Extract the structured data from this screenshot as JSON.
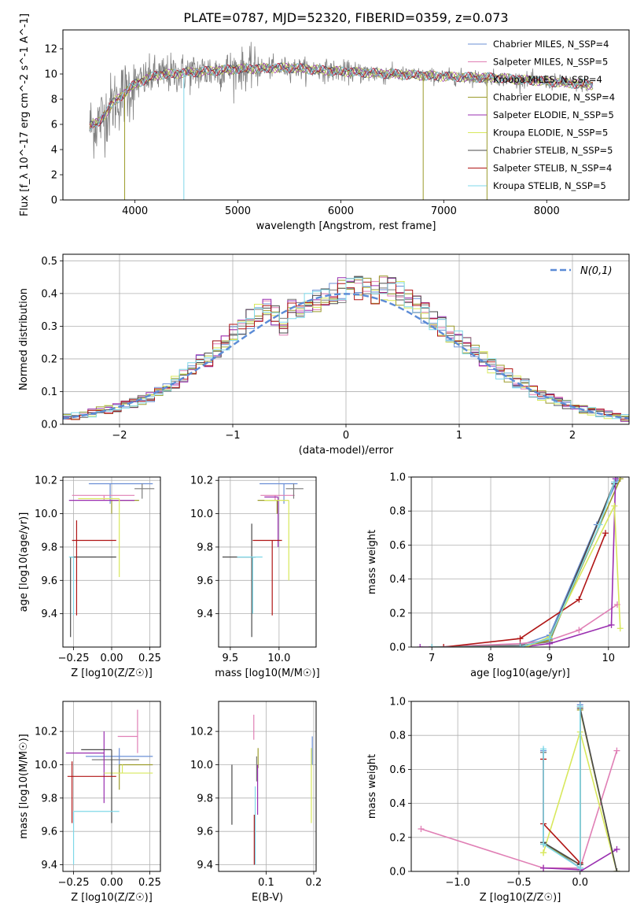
{
  "figure": {
    "title": "PLATE=0787, MJD=52320, FIBERID=0359, z=0.073"
  },
  "colors": {
    "series": [
      "#6b8fd6",
      "#e07fb5",
      "#7b7b7b",
      "#9b9b2b",
      "#9a2fb0",
      "#d8e85c",
      "#4a4a4a",
      "#b01515",
      "#7fd8e8"
    ],
    "data": "#808080",
    "grid": "#b0b0b0",
    "normal_curve": "#5b8bd6"
  },
  "chart_data": [
    {
      "id": "spectrum",
      "type": "line",
      "xlabel": "wavelength [Angstrom, rest frame]",
      "ylabel": "Flux [f_λ 10^-17 erg cm^-2 s^-1 A^-1]",
      "xlim": [
        3300,
        8800
      ],
      "ylim": [
        0,
        13.5
      ],
      "xticks": [
        4000,
        5000,
        6000,
        7000,
        8000
      ],
      "yticks": [
        0,
        2,
        4,
        6,
        8,
        10,
        12
      ],
      "grid": false,
      "legend_position": "top-right",
      "legend": [
        {
          "name": "Chabrier MILES",
          "nssp": "N_SSP=4"
        },
        {
          "name": "Salpeter MILES",
          "nssp": "N_SSP=5"
        },
        {
          "name": "Kroupa MILES",
          "nssp": "N_SSP=4"
        },
        {
          "name": "Chabrier ELODIE",
          "nssp": "N_SSP=4"
        },
        {
          "name": "Salpeter ELODIE",
          "nssp": "N_SSP=5"
        },
        {
          "name": "Kroupa ELODIE",
          "nssp": "N_SSP=5"
        },
        {
          "name": "Chabrier STELIB",
          "nssp": "N_SSP=5"
        },
        {
          "name": "Salpeter STELIB",
          "nssp": "N_SSP=4"
        },
        {
          "name": "Kroupa STELIB",
          "nssp": "N_SSP=5"
        }
      ],
      "continuum": {
        "x": [
          3550,
          3650,
          3800,
          4000,
          4200,
          4500,
          5000,
          5500,
          6000,
          6500,
          7000,
          7500,
          8000,
          8500
        ],
        "y": [
          5.8,
          6.2,
          7.8,
          9.2,
          9.9,
          10.1,
          10.4,
          10.5,
          10.2,
          10.0,
          9.8,
          9.7,
          9.4,
          9.1
        ]
      }
    },
    {
      "id": "residual_histogram",
      "type": "line",
      "xlabel": "(data-model)/error",
      "ylabel": "Normed distribution",
      "xlim": [
        -2.5,
        2.5
      ],
      "ylim": [
        0,
        0.52
      ],
      "xticks": [
        -2,
        -1,
        0,
        1,
        2
      ],
      "yticks": [
        0.0,
        0.1,
        0.2,
        0.3,
        0.4,
        0.5
      ],
      "grid": true,
      "legend_position": "top-right",
      "legend_label": "N(0,1)",
      "bin_width": 0.1,
      "base_y": [
        0.02,
        0.025,
        0.03,
        0.035,
        0.04,
        0.045,
        0.05,
        0.058,
        0.065,
        0.075,
        0.085,
        0.1,
        0.11,
        0.13,
        0.15,
        0.17,
        0.19,
        0.2,
        0.23,
        0.25,
        0.28,
        0.3,
        0.32,
        0.34,
        0.35,
        0.33,
        0.3,
        0.35,
        0.36,
        0.37,
        0.38,
        0.39,
        0.4,
        0.41,
        0.41,
        0.42,
        0.41,
        0.4,
        0.42,
        0.41,
        0.4,
        0.38,
        0.36,
        0.34,
        0.32,
        0.3,
        0.28,
        0.26,
        0.24,
        0.22,
        0.2,
        0.18,
        0.16,
        0.15,
        0.13,
        0.12,
        0.1,
        0.09,
        0.08,
        0.07,
        0.06,
        0.05,
        0.045,
        0.04,
        0.035,
        0.03,
        0.025,
        0.02
      ]
    },
    {
      "id": "age_vs_Z",
      "type": "scatter",
      "xlabel": "Z [log10(Z/Z☉)]",
      "ylabel": "age  [log10(age/yr)]",
      "xlim": [
        -0.32,
        0.32
      ],
      "ylim": [
        9.2,
        10.22
      ],
      "xticks": [
        -0.25,
        0.0,
        0.25
      ],
      "yticks": [
        9.4,
        9.6,
        9.8,
        10.0,
        10.2
      ],
      "grid": true,
      "points": [
        {
          "x": -0.01,
          "y": 10.18,
          "xerr": [
            0.14,
            0.28
          ],
          "yerr": [
            0.12,
            0.0
          ]
        },
        {
          "x": -0.05,
          "y": 10.11,
          "xerr": [
            0.21,
            0.2
          ],
          "yerr": [
            0.03,
            0.0
          ]
        },
        {
          "x": 0.2,
          "y": 10.15,
          "xerr": [
            0.05,
            0.08
          ],
          "yerr": [
            0.06,
            0.03
          ]
        },
        {
          "x": 0.0,
          "y": 10.08,
          "xerr": [
            0.0,
            0.18
          ],
          "yerr": [
            0.08,
            0.0
          ]
        },
        {
          "x": -0.05,
          "y": 10.08,
          "xerr": [
            0.23,
            0.2
          ],
          "yerr": [
            0.0,
            0.0
          ]
        },
        {
          "x": 0.05,
          "y": 10.09,
          "xerr": [
            0.27,
            0.0
          ],
          "yerr": [
            0.47,
            0.0
          ]
        },
        {
          "x": -0.27,
          "y": 9.74,
          "xerr": [
            0.0,
            0.3
          ],
          "yerr": [
            0.48,
            0.0
          ]
        },
        {
          "x": -0.23,
          "y": 9.84,
          "xerr": [
            0.03,
            0.26
          ],
          "yerr": [
            0.45,
            0.12
          ]
        },
        {
          "x": -0.25,
          "y": 9.74,
          "xerr": [
            0.03,
            0.0
          ],
          "yerr": [
            0.35,
            0.0
          ]
        }
      ]
    },
    {
      "id": "age_vs_mass",
      "type": "scatter",
      "xlabel": "mass [log10(M/M☉)]",
      "ylabel": "",
      "xlim": [
        9.38,
        10.38
      ],
      "ylim": [
        9.2,
        10.22
      ],
      "xticks": [
        9.5,
        10.0
      ],
      "yticks": [
        9.4,
        9.6,
        9.8,
        10.0,
        10.2
      ],
      "grid": true,
      "points": [
        {
          "x": 10.05,
          "y": 10.18,
          "xerr": [
            0.25,
            0.14
          ],
          "yerr": [
            0.12,
            0.0
          ]
        },
        {
          "x": 9.96,
          "y": 10.11,
          "xerr": [
            0.15,
            0.2
          ],
          "yerr": [
            0.03,
            0.0
          ]
        },
        {
          "x": 10.15,
          "y": 10.15,
          "xerr": [
            0.08,
            0.1
          ],
          "yerr": [
            0.06,
            0.03
          ]
        },
        {
          "x": 9.98,
          "y": 10.08,
          "xerr": [
            0.2,
            0.0
          ],
          "yerr": [
            0.08,
            0.0
          ]
        },
        {
          "x": 9.99,
          "y": 10.1,
          "xerr": [
            0.14,
            0.0
          ],
          "yerr": [
            0.3,
            0.0
          ]
        },
        {
          "x": 10.1,
          "y": 10.08,
          "xerr": [
            0.25,
            0.0
          ],
          "yerr": [
            0.48,
            0.0
          ]
        },
        {
          "x": 9.72,
          "y": 9.74,
          "xerr": [
            0.3,
            0.04
          ],
          "yerr": [
            0.48,
            0.2
          ]
        },
        {
          "x": 9.93,
          "y": 9.84,
          "xerr": [
            0.2,
            0.1
          ],
          "yerr": [
            0.45,
            0.0
          ]
        },
        {
          "x": 9.73,
          "y": 9.74,
          "xerr": [
            0.16,
            0.1
          ],
          "yerr": [
            0.34,
            0.0
          ]
        }
      ]
    },
    {
      "id": "mass_weight_vs_age",
      "type": "line",
      "xlabel": "age  [log10(age/yr)]",
      "ylabel": "mass weight",
      "xlim": [
        6.65,
        10.35
      ],
      "ylim": [
        0,
        1.0
      ],
      "xticks": [
        7,
        8,
        9,
        10
      ],
      "yticks": [
        0.0,
        0.2,
        0.4,
        0.6,
        0.8,
        1.0
      ],
      "grid": true,
      "series": [
        {
          "x": [
            7.0,
            8.5,
            9.0,
            9.8,
            10.15
          ],
          "y": [
            0.0,
            0.01,
            0.07,
            0.72,
            0.98
          ]
        },
        {
          "x": [
            7.0,
            8.5,
            9.0,
            9.5,
            10.15
          ],
          "y": [
            0.0,
            0.02,
            0.04,
            0.1,
            0.25
          ]
        },
        {
          "x": [
            7.0,
            8.5,
            9.0,
            10.1
          ],
          "y": [
            0.0,
            0.01,
            0.03,
            0.97
          ]
        },
        {
          "x": [
            7.0,
            8.5,
            9.0,
            10.2
          ],
          "y": [
            0.0,
            0.0,
            0.04,
            0.99
          ]
        },
        {
          "x": [
            6.8,
            8.5,
            9.0,
            10.05,
            10.12
          ],
          "y": [
            0.0,
            0.0,
            0.02,
            0.13,
            0.99
          ]
        },
        {
          "x": [
            7.0,
            8.6,
            9.0,
            10.1,
            10.2
          ],
          "y": [
            0.0,
            0.0,
            0.06,
            0.83,
            0.11
          ]
        },
        {
          "x": [
            7.0,
            8.5,
            9.0,
            10.1
          ],
          "y": [
            0.0,
            0.0,
            0.05,
            0.96
          ]
        },
        {
          "x": [
            7.2,
            8.5,
            9.5,
            9.95
          ],
          "y": [
            0.0,
            0.05,
            0.28,
            0.67
          ]
        },
        {
          "x": [
            7.0,
            8.5,
            9.0,
            9.85,
            10.1
          ],
          "y": [
            0.0,
            0.0,
            0.05,
            0.72,
            0.97
          ]
        }
      ]
    },
    {
      "id": "mass_vs_Z",
      "type": "scatter",
      "xlabel": "Z [log10(Z/Z☉)]",
      "ylabel": "mass [log10(M/M☉)]",
      "xlim": [
        -0.32,
        0.32
      ],
      "ylim": [
        9.36,
        10.38
      ],
      "xticks": [
        -0.25,
        0.0,
        0.25
      ],
      "yticks": [
        9.4,
        9.6,
        9.8,
        10.0,
        10.2
      ],
      "grid": true,
      "points": [
        {
          "x": 0.05,
          "y": 10.05,
          "xerr": [
            0.22,
            0.22
          ],
          "yerr": [
            0.1,
            0.05
          ]
        },
        {
          "x": 0.17,
          "y": 10.17,
          "xerr": [
            0.13,
            0.0
          ],
          "yerr": [
            0.1,
            0.16
          ]
        },
        {
          "x": 0.0,
          "y": 10.03,
          "xerr": [
            0.13,
            0.18
          ],
          "yerr": [
            0.1,
            0.0
          ]
        },
        {
          "x": 0.05,
          "y": 10.0,
          "xerr": [
            0.0,
            0.22
          ],
          "yerr": [
            0.15,
            0.0
          ]
        },
        {
          "x": -0.05,
          "y": 10.07,
          "xerr": [
            0.25,
            0.0
          ],
          "yerr": [
            0.3,
            0.13
          ]
        },
        {
          "x": 0.07,
          "y": 9.95,
          "xerr": [
            0.12,
            0.2
          ],
          "yerr": [
            0.0,
            0.05
          ]
        },
        {
          "x": 0.0,
          "y": 10.09,
          "xerr": [
            0.2,
            0.0
          ],
          "yerr": [
            0.44,
            0.0
          ]
        },
        {
          "x": -0.26,
          "y": 9.93,
          "xerr": [
            0.03,
            0.29
          ],
          "yerr": [
            0.28,
            0.09
          ]
        },
        {
          "x": -0.25,
          "y": 9.72,
          "xerr": [
            0.0,
            0.3
          ],
          "yerr": [
            0.32,
            0.0
          ]
        }
      ]
    },
    {
      "id": "mass_vs_EBV",
      "type": "scatter",
      "xlabel": "E(B-V)",
      "ylabel": "",
      "xlim": [
        0.0,
        0.205
      ],
      "ylim": [
        9.36,
        10.38
      ],
      "xticks": [
        0.1,
        0.2
      ],
      "yticks": [
        9.4,
        9.6,
        9.8,
        10.0,
        10.2
      ],
      "grid": true,
      "points": [
        {
          "x": 0.197,
          "y": 10.1,
          "yerr": [
            0.1,
            0.07
          ]
        },
        {
          "x": 0.074,
          "y": 10.2,
          "yerr": [
            0.05,
            0.1
          ]
        },
        {
          "x": 0.08,
          "y": 10.0,
          "yerr": [
            0.1,
            0.05
          ]
        },
        {
          "x": 0.083,
          "y": 10.1,
          "yerr": [
            0.12,
            0.0
          ]
        },
        {
          "x": 0.082,
          "y": 10.0,
          "yerr": [
            0.3,
            0.0
          ]
        },
        {
          "x": 0.195,
          "y": 9.9,
          "yerr": [
            0.25,
            0.2
          ]
        },
        {
          "x": 0.028,
          "y": 9.8,
          "yerr": [
            0.16,
            0.2
          ]
        },
        {
          "x": 0.075,
          "y": 9.7,
          "yerr": [
            0.3,
            0.0
          ]
        },
        {
          "x": 0.077,
          "y": 9.75,
          "yerr": [
            0.35,
            0.12
          ]
        }
      ]
    },
    {
      "id": "mass_weight_vs_Z",
      "type": "line",
      "xlabel": "Z [log10(Z/Z☉)]",
      "ylabel": "mass weight",
      "xlim": [
        -1.38,
        0.4
      ],
      "ylim": [
        0,
        1.0
      ],
      "xticks": [
        -1.0,
        -0.5,
        0.0
      ],
      "yticks": [
        0.0,
        0.2,
        0.4,
        0.6,
        0.8,
        1.0
      ],
      "grid": true,
      "series": [
        {
          "x": [
            -0.3,
            -0.3,
            0.0,
            0.0
          ],
          "y": [
            0.71,
            0.17,
            0.02,
            0.98
          ]
        },
        {
          "x": [
            -1.3,
            -0.3,
            0.0,
            0.3
          ],
          "y": [
            0.25,
            0.02,
            0.02,
            0.71
          ]
        },
        {
          "x": [
            -0.3,
            -0.3,
            0.0,
            0.0
          ],
          "y": [
            0.7,
            0.17,
            0.02,
            0.97
          ]
        },
        {
          "x": [
            -0.3,
            0.0,
            0.0,
            0.3
          ],
          "y": [
            0.16,
            0.04,
            0.95,
            0.0
          ]
        },
        {
          "x": [
            -0.3,
            0.0,
            0.0,
            0.3
          ],
          "y": [
            0.02,
            0.01,
            0.0,
            0.13
          ]
        },
        {
          "x": [
            -0.3,
            -0.3,
            0.0,
            0.3
          ],
          "y": [
            0.11,
            0.11,
            0.82,
            0.0
          ]
        },
        {
          "x": [
            -0.3,
            0.0,
            0.0,
            0.3
          ],
          "y": [
            0.17,
            0.04,
            0.96,
            0.0
          ]
        },
        {
          "x": [
            -0.3,
            -0.3,
            0.0
          ],
          "y": [
            0.66,
            0.28,
            0.05
          ]
        },
        {
          "x": [
            -0.3,
            -0.3,
            0.0,
            0.0
          ],
          "y": [
            0.72,
            0.16,
            0.02,
            0.97
          ]
        }
      ]
    }
  ]
}
